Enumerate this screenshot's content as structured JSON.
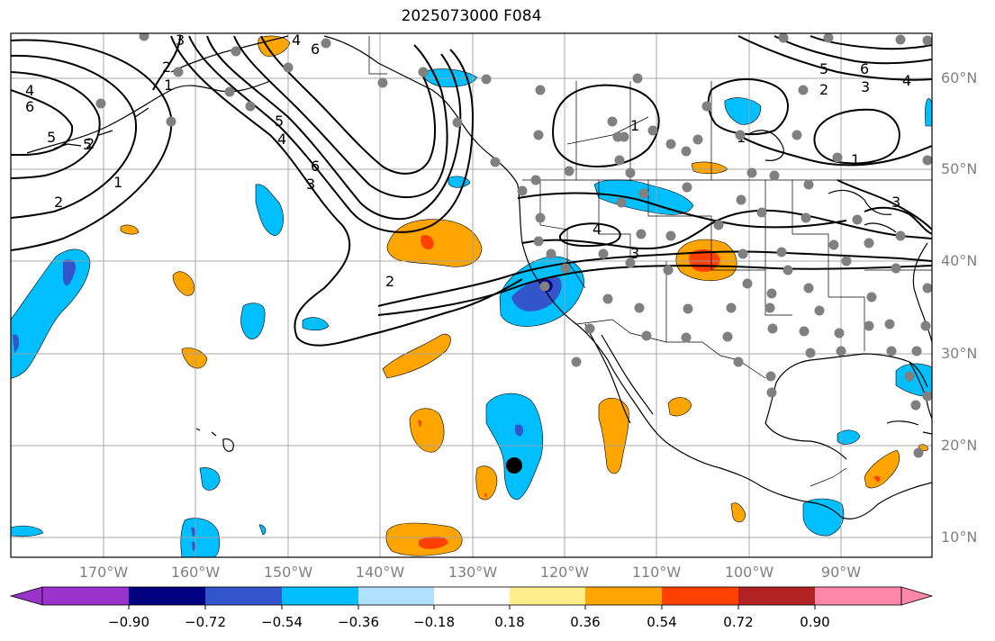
{
  "title": "2025073000 F084",
  "lat_labels": [
    "60°N",
    "50°N",
    "40°N",
    "30°N",
    "20°N",
    "10°N"
  ],
  "lon_labels": [
    "170°W",
    "160°W",
    "150°W",
    "140°W",
    "130°W",
    "120°W",
    "110°W",
    "100°W",
    "90°W"
  ],
  "colorbar": {
    "tick_labels": [
      "−0.90",
      "−0.72",
      "−0.54",
      "−0.36",
      "−0.18",
      "0.18",
      "0.36",
      "0.54",
      "0.72",
      "0.90"
    ],
    "colors": [
      "#9933cc",
      "#000080",
      "#3355cc",
      "#00bfff",
      "#b0e0ff",
      "#ffffff",
      "#ffec8b",
      "#ffa500",
      "#ff4000",
      "#b22222",
      "#ff88aa"
    ]
  },
  "contour_labels": [
    "4",
    "5",
    "6",
    "5",
    "6",
    "4",
    "1",
    "2",
    "1",
    "2",
    "3",
    "4",
    "5",
    "6",
    "1",
    "2",
    "3",
    "4",
    "5",
    "6",
    "1",
    "3",
    "4",
    "3",
    "1",
    "2",
    "3",
    "2"
  ],
  "colors": {
    "grid": "#a0a0a0",
    "coast": "#000000",
    "station": "#808080",
    "storm": "#000000"
  }
}
